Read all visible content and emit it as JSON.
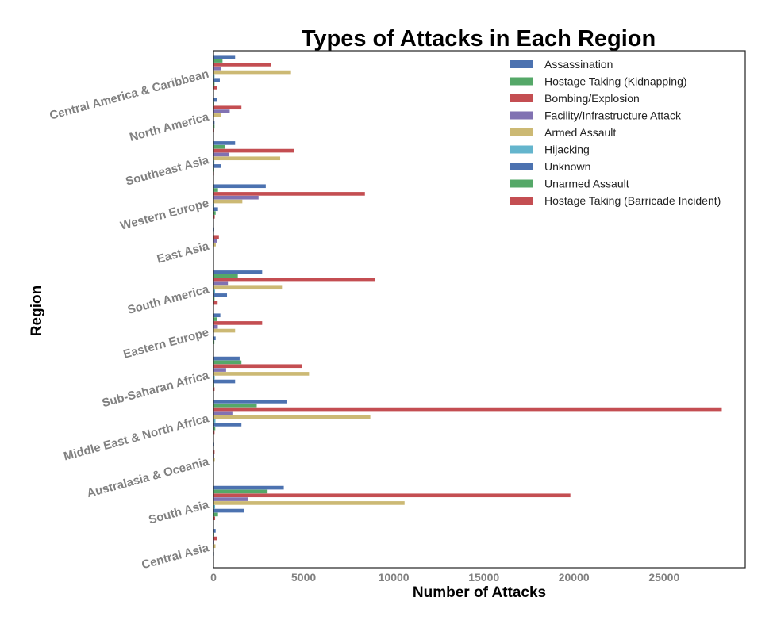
{
  "chart_data": {
    "type": "bar",
    "orientation": "horizontal",
    "title": "Types of Attacks in Each Region",
    "xlabel": "Number of Attacks",
    "ylabel": "Region",
    "xlim": [
      0,
      29500
    ],
    "xticks": [
      0,
      5000,
      10000,
      15000,
      20000,
      25000
    ],
    "legend_position": "top-right",
    "categories": [
      "Central America & Caribbean",
      "North America",
      "Southeast Asia",
      "Western Europe",
      "East Asia",
      "South America",
      "Eastern Europe",
      "Sub-Saharan Africa",
      "Middle East & North Africa",
      "Australasia & Oceania",
      "South Asia",
      "Central Asia"
    ],
    "series": [
      {
        "name": "Assassination",
        "color": "#4c72b0",
        "values": [
          1200,
          200,
          1200,
          2900,
          40,
          2700,
          380,
          1450,
          4050,
          40,
          3900,
          120
        ]
      },
      {
        "name": "Hostage Taking (Kidnapping)",
        "color": "#55a868",
        "values": [
          500,
          40,
          650,
          250,
          20,
          1350,
          180,
          1550,
          2400,
          20,
          3000,
          40
        ]
      },
      {
        "name": "Bombing/Explosion",
        "color": "#c44e52",
        "values": [
          3200,
          1550,
          4450,
          8400,
          300,
          8950,
          2700,
          4900,
          28200,
          60,
          19800,
          210
        ]
      },
      {
        "name": "Facility/Infrastructure Attack",
        "color": "#8172b2",
        "values": [
          400,
          900,
          850,
          2500,
          200,
          800,
          240,
          700,
          1050,
          40,
          1900,
          40
        ]
      },
      {
        "name": "Armed Assault",
        "color": "#ccb974",
        "values": [
          4300,
          400,
          3700,
          1600,
          130,
          3800,
          1200,
          5300,
          8700,
          70,
          10600,
          110
        ]
      },
      {
        "name": "Hijacking",
        "color": "#64b5cd",
        "values": [
          60,
          15,
          50,
          40,
          10,
          90,
          20,
          70,
          110,
          5,
          90,
          10
        ]
      },
      {
        "name": "Unknown",
        "color": "#4c72b0",
        "values": [
          350,
          60,
          400,
          250,
          20,
          750,
          120,
          1200,
          1550,
          15,
          1700,
          30
        ]
      },
      {
        "name": "Unarmed Assault",
        "color": "#55a868",
        "values": [
          60,
          60,
          40,
          120,
          15,
          60,
          50,
          40,
          100,
          10,
          250,
          20
        ]
      },
      {
        "name": "Hostage Taking (Barricade Incident)",
        "color": "#c44e52",
        "values": [
          180,
          40,
          30,
          70,
          10,
          230,
          20,
          60,
          60,
          5,
          90,
          10
        ]
      }
    ]
  }
}
